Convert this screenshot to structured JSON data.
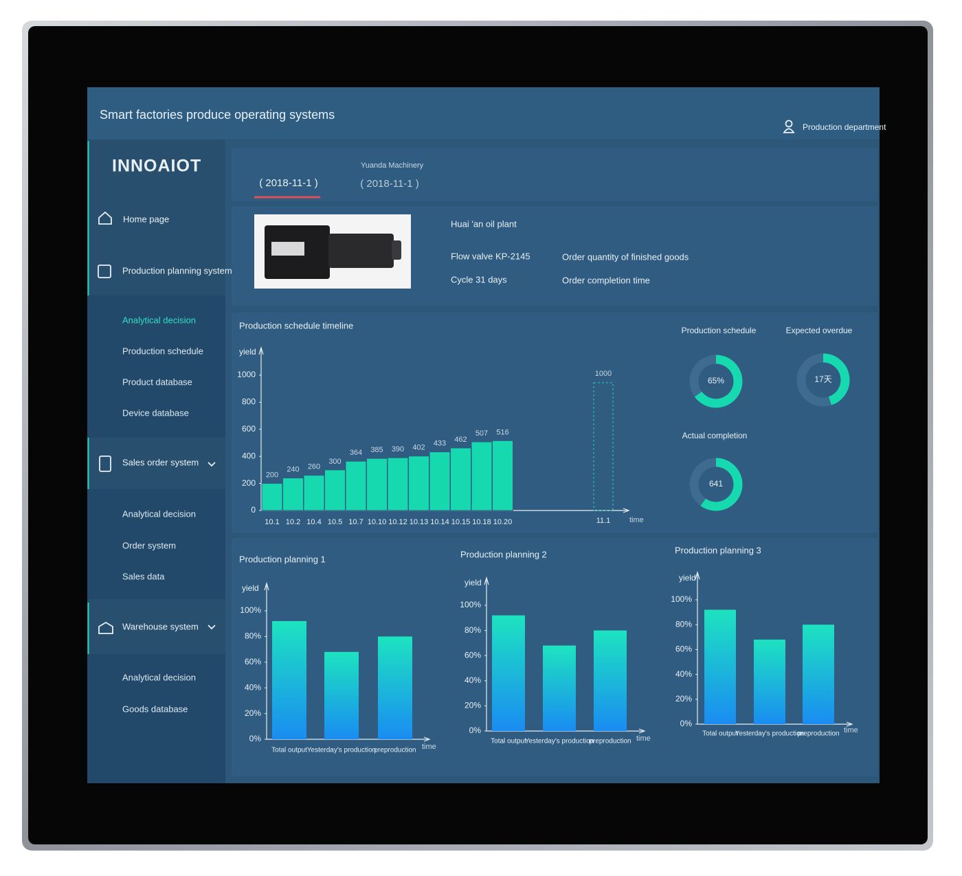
{
  "header": {
    "title": "Smart factories produce operating systems",
    "user": "Production department"
  },
  "sidebar": {
    "logo": "INNOAIOT",
    "menus": [
      {
        "label": "Home page",
        "items": []
      },
      {
        "label": "Production planning system",
        "items": [
          "Analytical decision",
          "Production schedule",
          "Product database",
          "Device database"
        ]
      },
      {
        "label": "Sales order system",
        "items": [
          "Analytical decision",
          "Order system",
          "Sales data"
        ]
      },
      {
        "label": "Warehouse system",
        "items": [
          "Analytical decision",
          "Goods database"
        ]
      }
    ]
  },
  "tabs": [
    {
      "date": "( 2018-11-1 )"
    },
    {
      "name": "Yuanda Machinery",
      "date": "( 2018-11-1 )"
    }
  ],
  "info": {
    "plant": "Huai 'an oil plant",
    "product": "Flow valve KP-2145",
    "cycle": "Cycle 31 days",
    "quantity": "Order quantity of finished goods",
    "completion": "Order completion time"
  },
  "chart_data": [
    {
      "type": "bar",
      "title": "Production schedule timeline",
      "y_label": "yield",
      "x_label": "time",
      "categories": [
        "10.1",
        "10.2",
        "10.4",
        "10.5",
        "10.7",
        "10.10",
        "10.12",
        "10.13",
        "10.14",
        "10.15",
        "10.18",
        "10.20"
      ],
      "values": [
        200,
        240,
        260,
        300,
        364,
        385,
        390,
        402,
        433,
        462,
        507,
        516
      ],
      "target": {
        "category": "11.1",
        "value": 1000
      },
      "color": "#17d9b0",
      "ylim": [
        0,
        1000
      ],
      "yticks": [
        0,
        200,
        400,
        600,
        800,
        1000
      ]
    },
    {
      "type": "donut",
      "title": "Production schedule",
      "center_label": "65%",
      "values": [
        65,
        35
      ],
      "colors": [
        "#17d9b0",
        "#3d6c90"
      ]
    },
    {
      "type": "donut",
      "title": "Expected overdue",
      "center_label": "17天",
      "values": [
        45,
        55
      ],
      "colors": [
        "#17d9b0",
        "#3d6c90"
      ]
    },
    {
      "type": "donut",
      "title": "Actual completion",
      "center_label": "641",
      "values": [
        60,
        40
      ],
      "colors": [
        "#17d9b0",
        "#3d6c90"
      ]
    },
    {
      "type": "bar",
      "title": "Production planning 1",
      "y_label": "yield",
      "x_label": "time",
      "categories": [
        "Total output",
        "Yesterday's production",
        "preproduction"
      ],
      "values": [
        92,
        68,
        80
      ],
      "gradient": [
        "#1de3c0",
        "#1a8cf2"
      ],
      "ylim": [
        0,
        100
      ],
      "yticks": [
        {
          "value": 0,
          "label": "0%"
        },
        {
          "value": 20,
          "label": "20%"
        },
        {
          "value": 40,
          "label": "40%"
        },
        {
          "value": 60,
          "label": "60%"
        },
        {
          "value": 80,
          "label": "80%"
        },
        {
          "value": 100,
          "label": "100%"
        }
      ]
    },
    {
      "type": "bar",
      "title": "Production planning 2",
      "y_label": "yield",
      "x_label": "time",
      "categories": [
        "Total output",
        "Yesterday's production",
        "preproduction"
      ],
      "values": [
        92,
        68,
        80
      ],
      "gradient": [
        "#1de3c0",
        "#1a8cf2"
      ],
      "ylim": [
        0,
        100
      ],
      "yticks": [
        {
          "value": 0,
          "label": "0%"
        },
        {
          "value": 20,
          "label": "20%"
        },
        {
          "value": 40,
          "label": "40%"
        },
        {
          "value": 60,
          "label": "60%"
        },
        {
          "value": 80,
          "label": "80%"
        },
        {
          "value": 100,
          "label": "100%"
        }
      ]
    },
    {
      "type": "bar",
      "title": "Production planning 3",
      "y_label": "yield",
      "x_label": "time",
      "categories": [
        "Total output",
        "Yesterday's production",
        "preproduction"
      ],
      "values": [
        92,
        68,
        80
      ],
      "gradient": [
        "#1de3c0",
        "#1a8cf2"
      ],
      "ylim": [
        0,
        100
      ],
      "yticks": [
        {
          "value": 0,
          "label": "0%"
        },
        {
          "value": 20,
          "label": "20%"
        },
        {
          "value": 40,
          "label": "40%"
        },
        {
          "value": 60,
          "label": "60%"
        },
        {
          "value": 80,
          "label": "80%"
        },
        {
          "value": 100,
          "label": "100%"
        }
      ]
    }
  ]
}
